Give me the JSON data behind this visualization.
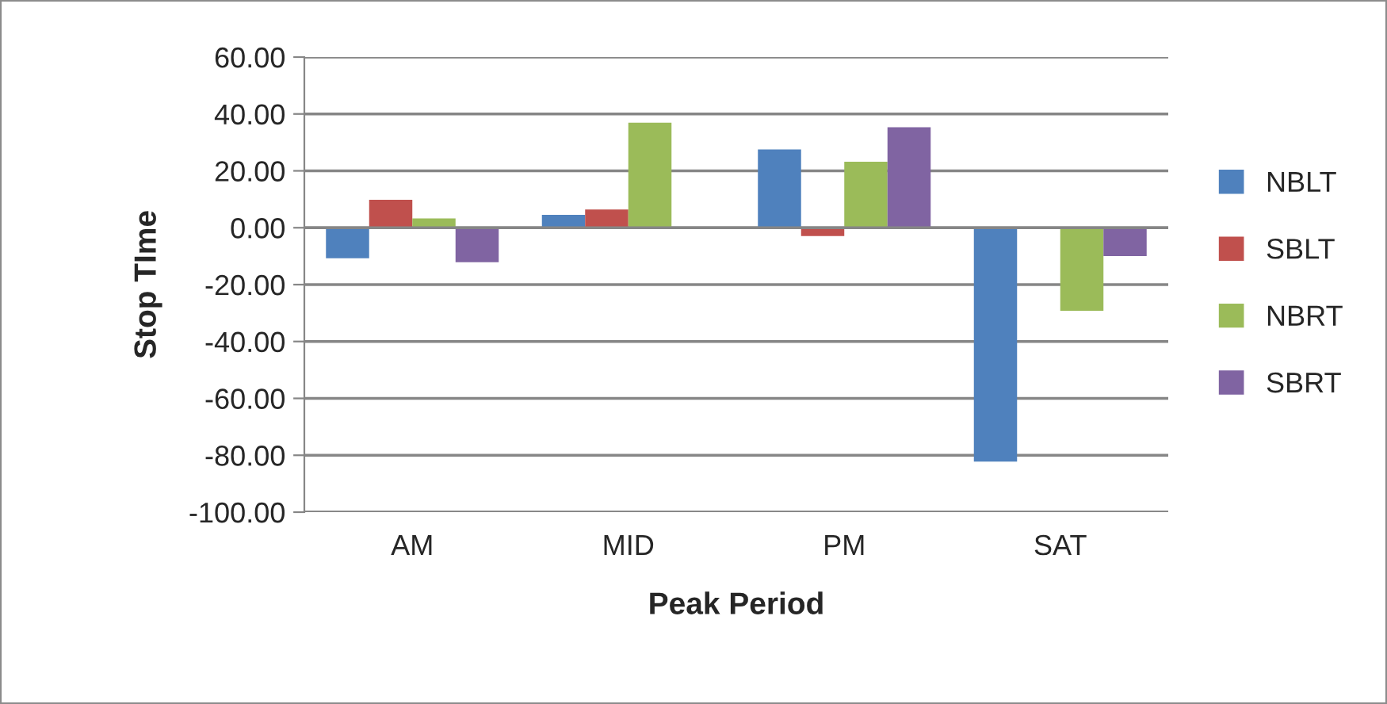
{
  "chart_data": {
    "type": "bar",
    "xlabel": "Peak Period",
    "ylabel": "Stop TIme",
    "categories": [
      "AM",
      "MID",
      "PM",
      "SAT"
    ],
    "series": [
      {
        "name": "NBLT",
        "color": "#4f81bd",
        "values": [
          -10.7,
          4.5,
          27.5,
          -82.2
        ]
      },
      {
        "name": "SBLT",
        "color": "#c0504d",
        "values": [
          9.8,
          6.4,
          -2.9,
          null
        ]
      },
      {
        "name": "NBRT",
        "color": "#9bbb59",
        "values": [
          3.3,
          36.9,
          23.2,
          -29.2
        ]
      },
      {
        "name": "SBRT",
        "color": "#8064a2",
        "values": [
          -12.1,
          null,
          35.3,
          -10.0
        ]
      }
    ],
    "ylim": [
      -100,
      60
    ],
    "yticks": [
      {
        "value": -100,
        "label": "-100.00"
      },
      {
        "value": -80,
        "label": "-80.00"
      },
      {
        "value": -60,
        "label": "-60.00"
      },
      {
        "value": -40,
        "label": "-40.00"
      },
      {
        "value": -20,
        "label": "-20.00"
      },
      {
        "value": 0,
        "label": "0.00"
      },
      {
        "value": 20,
        "label": "20.00"
      },
      {
        "value": 40,
        "label": "40.00"
      },
      {
        "value": 60,
        "label": "60.00"
      }
    ],
    "grid": "y",
    "legend": "right"
  }
}
